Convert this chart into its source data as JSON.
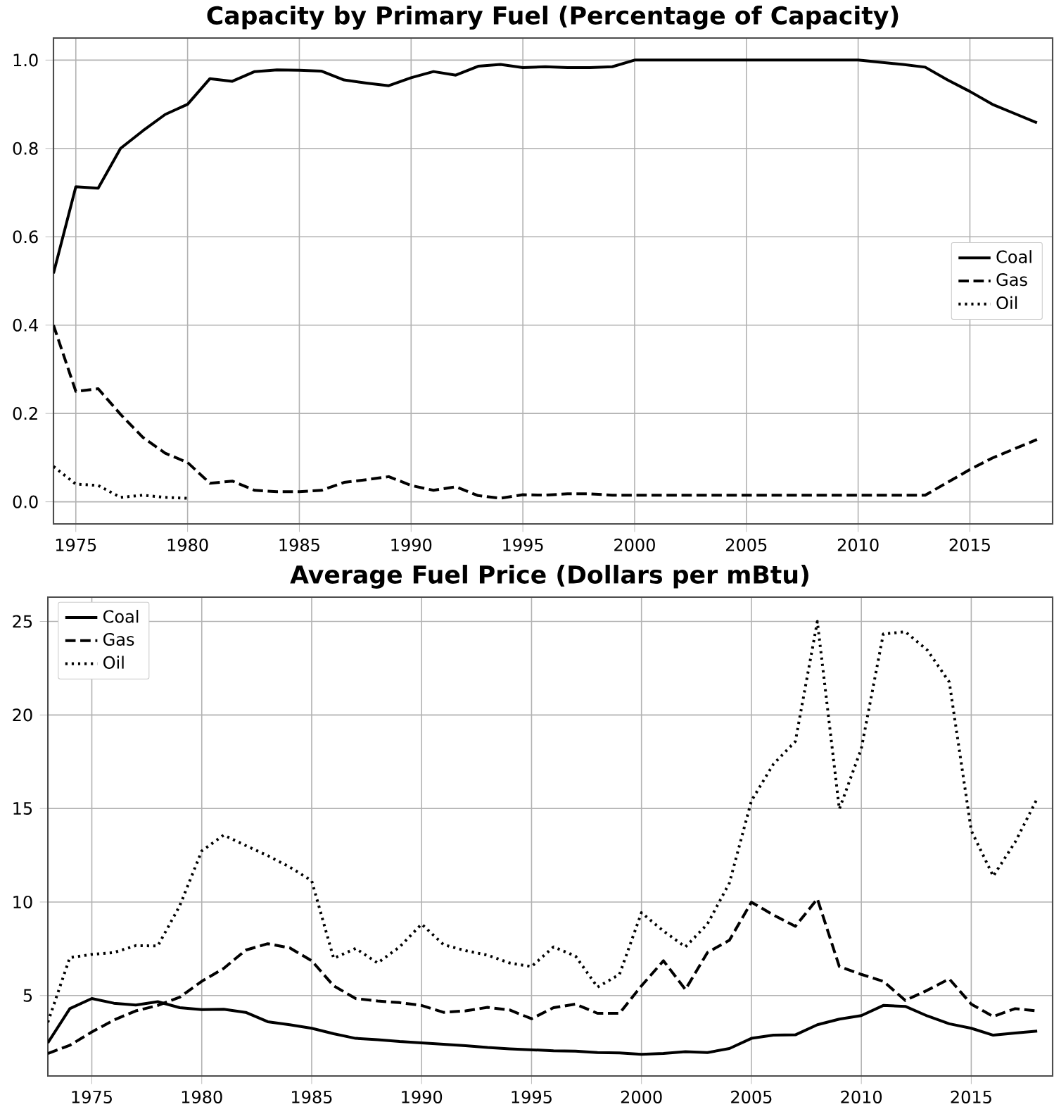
{
  "chart_data": [
    {
      "type": "line",
      "title": "Capacity by Primary Fuel (Percentage of Capacity)",
      "grid": true,
      "legend": "right",
      "x": [
        1974,
        1975,
        1976,
        1977,
        1978,
        1979,
        1980,
        1981,
        1982,
        1983,
        1984,
        1985,
        1986,
        1987,
        1988,
        1989,
        1990,
        1991,
        1992,
        1993,
        1994,
        1995,
        1996,
        1997,
        1998,
        1999,
        2000,
        2001,
        2002,
        2003,
        2004,
        2005,
        2006,
        2007,
        2008,
        2009,
        2010,
        2011,
        2012,
        2013,
        2014,
        2015,
        2016,
        2017,
        2018
      ],
      "xlim": [
        1974,
        2018.7
      ],
      "ylim": [
        -0.05,
        1.05
      ],
      "xticks": [
        1975,
        1980,
        1985,
        1990,
        1995,
        2000,
        2005,
        2010,
        2015
      ],
      "yticks": [
        {
          "value": 0,
          "label": "0.0"
        },
        {
          "value": 0.2,
          "label": "0.2"
        },
        {
          "value": 0.4,
          "label": "0.4"
        },
        {
          "value": 0.6,
          "label": "0.6"
        },
        {
          "value": 0.8,
          "label": "0.8"
        },
        {
          "value": 1,
          "label": "1.0"
        }
      ],
      "series": [
        {
          "name": "Coal",
          "color": "#000000",
          "line_style": "solid",
          "values": [
            0.517,
            0.713,
            0.71,
            0.8,
            0.84,
            0.877,
            0.9,
            0.958,
            0.952,
            0.974,
            0.978,
            0.977,
            0.975,
            0.955,
            0.948,
            0.942,
            0.96,
            0.974,
            0.966,
            0.986,
            0.99,
            0.983,
            0.985,
            0.983,
            0.983,
            0.985,
            1.0,
            1.0,
            1.0,
            1.0,
            1.0,
            1.0,
            1.0,
            1.0,
            1.0,
            1.0,
            1.0,
            0.995,
            0.99,
            0.984,
            0.955,
            0.929,
            0.9,
            0.879,
            0.858
          ]
        },
        {
          "name": "Gas",
          "color": "#000000",
          "line_style": "dashed",
          "values": [
            0.4,
            0.25,
            0.256,
            0.198,
            0.146,
            0.11,
            0.089,
            0.042,
            0.047,
            0.026,
            0.023,
            0.023,
            0.026,
            0.044,
            0.05,
            0.057,
            0.037,
            0.026,
            0.034,
            0.014,
            0.008,
            0.016,
            0.015,
            0.018,
            0.018,
            0.015,
            0.015,
            0.015,
            0.015,
            0.015,
            0.015,
            0.015,
            0.015,
            0.015,
            0.015,
            0.015,
            0.015,
            0.015,
            0.015,
            0.015,
            0.044,
            0.073,
            0.099,
            0.12,
            0.141
          ]
        },
        {
          "name": "Oil",
          "color": "#000000",
          "line_style": "dotted",
          "x": [
            1974,
            1975,
            1976,
            1977,
            1978,
            1979,
            1980
          ],
          "values": [
            0.08,
            0.04,
            0.037,
            0.01,
            0.015,
            0.01,
            0.008
          ]
        }
      ]
    },
    {
      "type": "line",
      "title": "Average Fuel Price (Dollars per mBtu)",
      "grid": true,
      "legend": "top left",
      "x": [
        1973,
        1974,
        1975,
        1976,
        1977,
        1978,
        1979,
        1980,
        1981,
        1982,
        1983,
        1984,
        1985,
        1986,
        1987,
        1988,
        1989,
        1990,
        1991,
        1992,
        1993,
        1994,
        1995,
        1996,
        1997,
        1998,
        1999,
        2000,
        2001,
        2002,
        2003,
        2004,
        2005,
        2006,
        2007,
        2008,
        2009,
        2010,
        2011,
        2012,
        2013,
        2014,
        2015,
        2016,
        2017,
        2018
      ],
      "xlim": [
        1973,
        2018.7
      ],
      "ylim": [
        0.7,
        26.3
      ],
      "xticks": [
        1975,
        1980,
        1985,
        1990,
        1995,
        2000,
        2005,
        2010,
        2015
      ],
      "yticks": [
        5,
        10,
        15,
        20,
        25
      ],
      "series": [
        {
          "name": "Coal",
          "color": "#000000",
          "line_style": "solid",
          "values": [
            2.47,
            4.3,
            4.84,
            4.59,
            4.49,
            4.67,
            4.35,
            4.25,
            4.27,
            4.1,
            3.6,
            3.44,
            3.25,
            2.96,
            2.71,
            2.64,
            2.54,
            2.47,
            2.39,
            2.32,
            2.22,
            2.15,
            2.1,
            2.05,
            2.03,
            1.95,
            1.93,
            1.86,
            1.9,
            2.0,
            1.95,
            2.17,
            2.71,
            2.88,
            2.9,
            3.44,
            3.74,
            3.93,
            4.47,
            4.42,
            3.91,
            3.49,
            3.25,
            2.88,
            3.0,
            3.1
          ]
        },
        {
          "name": "Gas",
          "color": "#000000",
          "line_style": "dashed",
          "values": [
            1.9,
            2.34,
            3.05,
            3.69,
            4.18,
            4.47,
            4.91,
            5.76,
            6.45,
            7.43,
            7.77,
            7.55,
            6.86,
            5.52,
            4.84,
            4.71,
            4.62,
            4.47,
            4.1,
            4.18,
            4.37,
            4.23,
            3.76,
            4.35,
            4.54,
            4.05,
            4.05,
            5.52,
            6.86,
            5.32,
            7.3,
            7.96,
            9.99,
            9.31,
            8.7,
            10.17,
            6.55,
            6.13,
            5.76,
            4.74,
            5.28,
            5.89,
            4.54,
            3.88,
            4.3,
            4.18
          ]
        },
        {
          "name": "Oil",
          "color": "#000000",
          "line_style": "dotted",
          "values": [
            3.57,
            7.03,
            7.2,
            7.3,
            7.67,
            7.65,
            9.8,
            12.73,
            13.58,
            13.02,
            12.48,
            11.87,
            11.14,
            6.99,
            7.52,
            6.74,
            7.6,
            8.82,
            7.72,
            7.4,
            7.16,
            6.74,
            6.55,
            7.6,
            7.11,
            5.45,
            6.13,
            9.43,
            8.45,
            7.6,
            8.82,
            11.02,
            15.41,
            17.37,
            18.59,
            25.0,
            14.97,
            18.2,
            24.33,
            24.45,
            23.47,
            21.76,
            13.82,
            11.38,
            13.21,
            15.53
          ]
        }
      ]
    }
  ]
}
